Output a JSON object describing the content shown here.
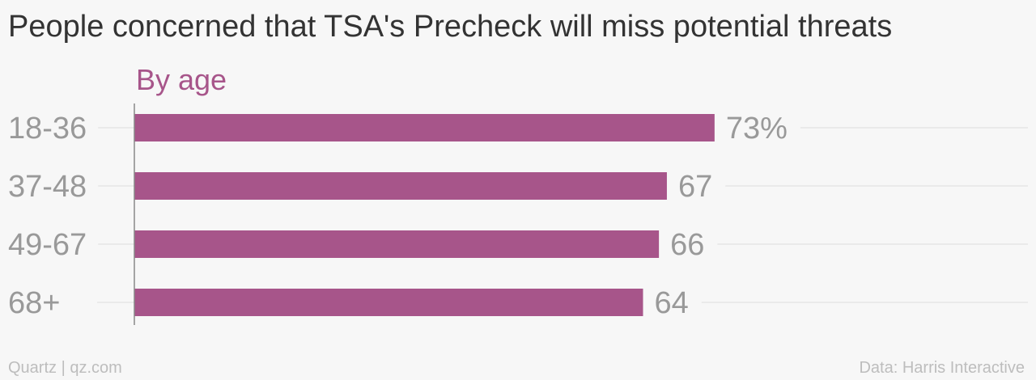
{
  "chart_data": {
    "type": "bar",
    "orientation": "horizontal",
    "title": "People concerned that TSA's Precheck will miss potential threats",
    "subtitle": "By age",
    "categories": [
      "18-36",
      "37-48",
      "49-67",
      "68+"
    ],
    "values": [
      73,
      67,
      66,
      64
    ],
    "value_labels": [
      "73%",
      "67",
      "66",
      "64"
    ],
    "unit": "%",
    "xlim": [
      0,
      100
    ],
    "grid": true,
    "bar_color": "#a7558a",
    "source": "Data: Harris Interactive",
    "credit": "Quartz | qz.com"
  },
  "colors": {
    "background": "#f7f7f7",
    "accent": "#a7558a",
    "title_text": "#333333",
    "label_text": "#999999",
    "footer_text": "#bdbdbd",
    "gridline": "#e6e6e6",
    "axis_line": "#888888"
  }
}
